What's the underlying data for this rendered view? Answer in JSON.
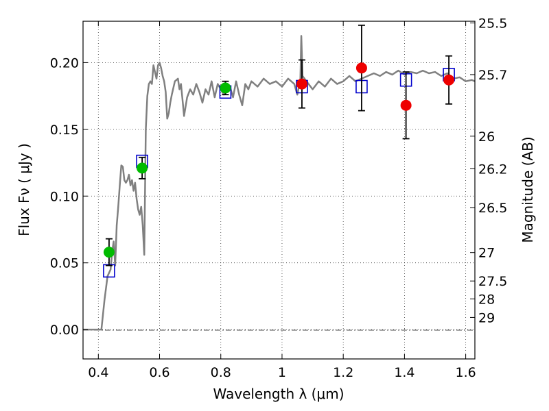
{
  "chart_data": {
    "type": "scatter",
    "title": "",
    "xlabel": "Wavelength  λ (μm)",
    "ylabel": "Flux  Fν  ( μJy )",
    "y2label": "Magnitude (AB)",
    "xlim": [
      0.35,
      1.63
    ],
    "ylim": [
      -0.022,
      0.231
    ],
    "grid": true,
    "x_ticks": [
      0.4,
      0.6,
      0.8,
      1.0,
      1.2,
      1.4,
      1.6
    ],
    "x_tick_labels": [
      "0.4",
      "0.6",
      "0.8",
      "1",
      "1.2",
      "1.4",
      "1.6"
    ],
    "y_ticks": [
      0.0,
      0.05,
      0.1,
      0.15,
      0.2
    ],
    "y_tick_labels": [
      "0.00",
      "0.05",
      "0.10",
      "0.15",
      "0.20"
    ],
    "y2_ticks": [
      {
        "label": "25.5",
        "flux": 0.2297
      },
      {
        "label": "25.7",
        "flux": 0.191
      },
      {
        "label": "26",
        "flux": 0.1449
      },
      {
        "label": "26.2",
        "flux": 0.1205
      },
      {
        "label": "26.5",
        "flux": 0.0914
      },
      {
        "label": "27",
        "flux": 0.0577
      },
      {
        "label": "27.5",
        "flux": 0.0364
      },
      {
        "label": "28",
        "flux": 0.023
      },
      {
        "label": "29",
        "flux": 0.0091
      }
    ],
    "colors": {
      "model": "#808080",
      "green_points": "#00bb00",
      "red_points": "#ee0000",
      "model_fluxes": "#0000cc",
      "errorbars": "#000000"
    },
    "series": [
      {
        "type": "line",
        "points": [
          [
            0.35,
            0.0
          ],
          [
            0.41,
            0.0
          ],
          [
            0.42,
            0.022
          ],
          [
            0.43,
            0.04
          ],
          [
            0.44,
            0.045
          ],
          [
            0.445,
            0.058
          ],
          [
            0.45,
            0.066
          ],
          [
            0.455,
            0.048
          ],
          [
            0.46,
            0.078
          ],
          [
            0.465,
            0.092
          ],
          [
            0.47,
            0.108
          ],
          [
            0.475,
            0.123
          ],
          [
            0.48,
            0.122
          ],
          [
            0.485,
            0.112
          ],
          [
            0.49,
            0.11
          ],
          [
            0.495,
            0.112
          ],
          [
            0.5,
            0.116
          ],
          [
            0.505,
            0.108
          ],
          [
            0.51,
            0.112
          ],
          [
            0.515,
            0.104
          ],
          [
            0.52,
            0.11
          ],
          [
            0.525,
            0.098
          ],
          [
            0.53,
            0.09
          ],
          [
            0.535,
            0.086
          ],
          [
            0.54,
            0.092
          ],
          [
            0.545,
            0.078
          ],
          [
            0.55,
            0.056
          ],
          [
            0.555,
            0.15
          ],
          [
            0.56,
            0.175
          ],
          [
            0.565,
            0.184
          ],
          [
            0.57,
            0.186
          ],
          [
            0.575,
            0.184
          ],
          [
            0.58,
            0.198
          ],
          [
            0.585,
            0.193
          ],
          [
            0.59,
            0.188
          ],
          [
            0.595,
            0.198
          ],
          [
            0.6,
            0.2
          ],
          [
            0.605,
            0.196
          ],
          [
            0.61,
            0.19
          ],
          [
            0.615,
            0.186
          ],
          [
            0.62,
            0.178
          ],
          [
            0.625,
            0.158
          ],
          [
            0.63,
            0.162
          ],
          [
            0.635,
            0.17
          ],
          [
            0.64,
            0.176
          ],
          [
            0.65,
            0.186
          ],
          [
            0.66,
            0.188
          ],
          [
            0.665,
            0.18
          ],
          [
            0.67,
            0.184
          ],
          [
            0.68,
            0.16
          ],
          [
            0.69,
            0.174
          ],
          [
            0.7,
            0.18
          ],
          [
            0.71,
            0.176
          ],
          [
            0.72,
            0.184
          ],
          [
            0.73,
            0.178
          ],
          [
            0.74,
            0.17
          ],
          [
            0.75,
            0.18
          ],
          [
            0.76,
            0.176
          ],
          [
            0.77,
            0.186
          ],
          [
            0.78,
            0.174
          ],
          [
            0.79,
            0.184
          ],
          [
            0.8,
            0.18
          ],
          [
            0.81,
            0.176
          ],
          [
            0.82,
            0.178
          ],
          [
            0.83,
            0.182
          ],
          [
            0.84,
            0.174
          ],
          [
            0.85,
            0.186
          ],
          [
            0.86,
            0.176
          ],
          [
            0.87,
            0.168
          ],
          [
            0.88,
            0.184
          ],
          [
            0.89,
            0.18
          ],
          [
            0.9,
            0.186
          ],
          [
            0.92,
            0.182
          ],
          [
            0.94,
            0.188
          ],
          [
            0.96,
            0.184
          ],
          [
            0.98,
            0.186
          ],
          [
            1.0,
            0.182
          ],
          [
            1.02,
            0.188
          ],
          [
            1.04,
            0.184
          ],
          [
            1.05,
            0.176
          ],
          [
            1.06,
            0.188
          ],
          [
            1.063,
            0.22
          ],
          [
            1.067,
            0.19
          ],
          [
            1.08,
            0.186
          ],
          [
            1.1,
            0.18
          ],
          [
            1.12,
            0.186
          ],
          [
            1.14,
            0.182
          ],
          [
            1.16,
            0.188
          ],
          [
            1.18,
            0.184
          ],
          [
            1.2,
            0.186
          ],
          [
            1.22,
            0.19
          ],
          [
            1.24,
            0.186
          ],
          [
            1.26,
            0.188
          ],
          [
            1.28,
            0.19
          ],
          [
            1.3,
            0.192
          ],
          [
            1.32,
            0.19
          ],
          [
            1.34,
            0.193
          ],
          [
            1.36,
            0.191
          ],
          [
            1.38,
            0.194
          ],
          [
            1.4,
            0.191
          ],
          [
            1.42,
            0.193
          ],
          [
            1.44,
            0.192
          ],
          [
            1.46,
            0.194
          ],
          [
            1.48,
            0.192
          ],
          [
            1.5,
            0.193
          ],
          [
            1.52,
            0.19
          ],
          [
            1.54,
            0.192
          ],
          [
            1.56,
            0.188
          ],
          [
            1.58,
            0.189
          ],
          [
            1.6,
            0.186
          ],
          [
            1.62,
            0.187
          ],
          [
            1.63,
            0.186
          ]
        ]
      },
      {
        "type": "scatter",
        "marker": "square",
        "points": [
          [
            0.435,
            0.044
          ],
          [
            0.543,
            0.126
          ],
          [
            0.815,
            0.178
          ],
          [
            1.065,
            0.182
          ],
          [
            1.26,
            0.182
          ],
          [
            1.405,
            0.187
          ],
          [
            1.545,
            0.191
          ]
        ]
      },
      {
        "type": "scatter",
        "marker": "circle",
        "color": "green",
        "points": [
          {
            "x": 0.435,
            "y": 0.058,
            "err": 0.01
          },
          {
            "x": 0.543,
            "y": 0.121,
            "err": 0.008
          },
          {
            "x": 0.815,
            "y": 0.181,
            "err": 0.005
          }
        ]
      },
      {
        "type": "scatter",
        "marker": "circle",
        "color": "red",
        "points": [
          {
            "x": 1.065,
            "y": 0.184,
            "err": 0.018
          },
          {
            "x": 1.26,
            "y": 0.196,
            "err": 0.032
          },
          {
            "x": 1.405,
            "y": 0.168,
            "err": 0.025
          },
          {
            "x": 1.545,
            "y": 0.187,
            "err": 0.018
          }
        ]
      }
    ]
  }
}
